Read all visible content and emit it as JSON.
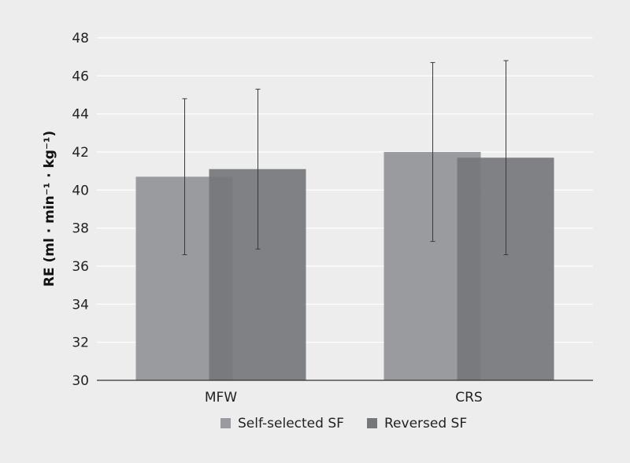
{
  "chart_data": {
    "type": "bar",
    "categories": [
      "MFW",
      "CRS"
    ],
    "series": [
      {
        "name": "Self-selected SF",
        "color": "#9a9b9f",
        "values": [
          40.7,
          42.0
        ],
        "error": [
          4.1,
          4.7
        ]
      },
      {
        "name": "Reversed SF",
        "color": "#76777b",
        "values": [
          41.1,
          41.7
        ],
        "error": [
          4.2,
          5.1
        ]
      }
    ],
    "ylabel": "RE (ml · min⁻¹ · kg⁻¹)",
    "ylim": [
      30,
      48
    ],
    "yticks": [
      30,
      32,
      34,
      36,
      38,
      40,
      42,
      44,
      46,
      48
    ],
    "grid": true,
    "legend_position": "bottom-center"
  }
}
